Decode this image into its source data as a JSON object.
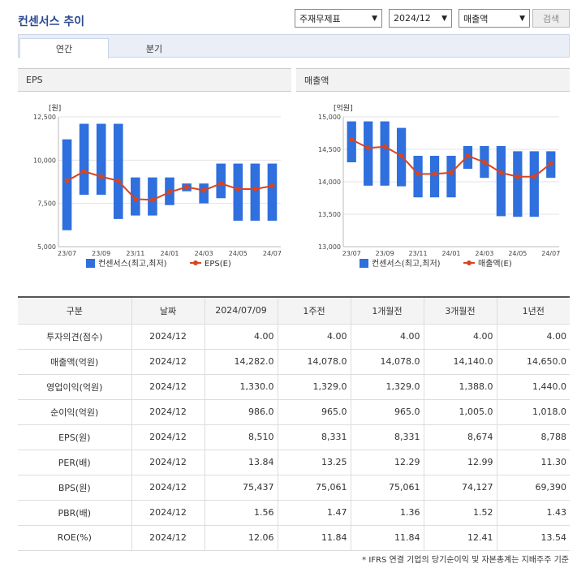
{
  "title": "컨센서스 추이",
  "selects": {
    "report_type": "주재무제표",
    "period": "2024/12",
    "metric": "매출액"
  },
  "search_label": "검색",
  "tabs": [
    "연간",
    "분기"
  ],
  "chart_data": [
    {
      "type": "bar",
      "title": "EPS",
      "unit": "[원]",
      "categories": [
        "23/07",
        "23/08",
        "23/09",
        "23/10",
        "23/11",
        "23/12",
        "24/01",
        "24/02",
        "24/03",
        "24/04",
        "24/05",
        "24/06",
        "24/07"
      ],
      "x_tick_labels": [
        "23/07",
        "23/09",
        "23/11",
        "24/01",
        "24/03",
        "24/05",
        "24/07"
      ],
      "ylim": [
        5000,
        12500
      ],
      "yticks": [
        "5,000",
        "7,500",
        "10,000",
        "12,500"
      ],
      "series": [
        {
          "name": "컨센서스(최고,최저)",
          "type": "range",
          "color": "#2f6fde",
          "high": [
            11200,
            12100,
            12100,
            12100,
            9000,
            9000,
            9000,
            8650,
            8650,
            9800,
            9800,
            9800,
            9800
          ],
          "low": [
            5950,
            8000,
            8000,
            6600,
            6800,
            6800,
            7400,
            8200,
            7500,
            7800,
            6500,
            6500,
            6500
          ]
        },
        {
          "name": "EPS(E)",
          "type": "line",
          "color": "#d9441f",
          "values": [
            8800,
            9350,
            9050,
            8800,
            7750,
            7700,
            8150,
            8450,
            8250,
            8650,
            8331,
            8331,
            8510
          ]
        }
      ]
    },
    {
      "type": "bar",
      "title": "매출액",
      "unit": "[억원]",
      "categories": [
        "23/07",
        "23/08",
        "23/09",
        "23/10",
        "23/11",
        "23/12",
        "24/01",
        "24/02",
        "24/03",
        "24/04",
        "24/05",
        "24/06",
        "24/07"
      ],
      "x_tick_labels": [
        "23/07",
        "23/09",
        "23/11",
        "24/01",
        "24/03",
        "24/05",
        "24/07"
      ],
      "ylim": [
        13000,
        15000
      ],
      "yticks": [
        "13,000",
        "13,500",
        "14,000",
        "14,500",
        "15,000"
      ],
      "series": [
        {
          "name": "컨센서스(최고,최저)",
          "type": "range",
          "color": "#2f6fde",
          "high": [
            14930,
            14930,
            14930,
            14830,
            14400,
            14400,
            14400,
            14550,
            14550,
            14550,
            14470,
            14470,
            14470
          ],
          "low": [
            14300,
            13940,
            13940,
            13930,
            13760,
            13760,
            13760,
            14200,
            14060,
            13470,
            13460,
            13460,
            14060
          ]
        },
        {
          "name": "매출액(E)",
          "type": "line",
          "color": "#d9441f",
          "values": [
            14650,
            14520,
            14540,
            14400,
            14120,
            14120,
            14140,
            14400,
            14300,
            14140,
            14078,
            14078,
            14282
          ]
        }
      ]
    }
  ],
  "table": {
    "headers": [
      "구분",
      "날짜",
      "2024/07/09",
      "1주전",
      "1개월전",
      "3개월전",
      "1년전"
    ],
    "rows": [
      [
        "투자의견(점수)",
        "2024/12",
        "4.00",
        "4.00",
        "4.00",
        "4.00",
        "4.00"
      ],
      [
        "매출액(억원)",
        "2024/12",
        "14,282.0",
        "14,078.0",
        "14,078.0",
        "14,140.0",
        "14,650.0"
      ],
      [
        "영업이익(억원)",
        "2024/12",
        "1,330.0",
        "1,329.0",
        "1,329.0",
        "1,388.0",
        "1,440.0"
      ],
      [
        "순이익(억원)",
        "2024/12",
        "986.0",
        "965.0",
        "965.0",
        "1,005.0",
        "1,018.0"
      ],
      [
        "EPS(원)",
        "2024/12",
        "8,510",
        "8,331",
        "8,331",
        "8,674",
        "8,788"
      ],
      [
        "PER(배)",
        "2024/12",
        "13.84",
        "13.25",
        "12.29",
        "12.99",
        "11.30"
      ],
      [
        "BPS(원)",
        "2024/12",
        "75,437",
        "75,061",
        "75,061",
        "74,127",
        "69,390"
      ],
      [
        "PBR(배)",
        "2024/12",
        "1.56",
        "1.47",
        "1.36",
        "1.52",
        "1.43"
      ],
      [
        "ROE(%)",
        "2024/12",
        "12.06",
        "11.84",
        "11.84",
        "12.41",
        "13.54"
      ]
    ]
  },
  "footnote": "* IFRS 연결 기업의 당기순이익 및 자본총계는 지배주주 기준"
}
